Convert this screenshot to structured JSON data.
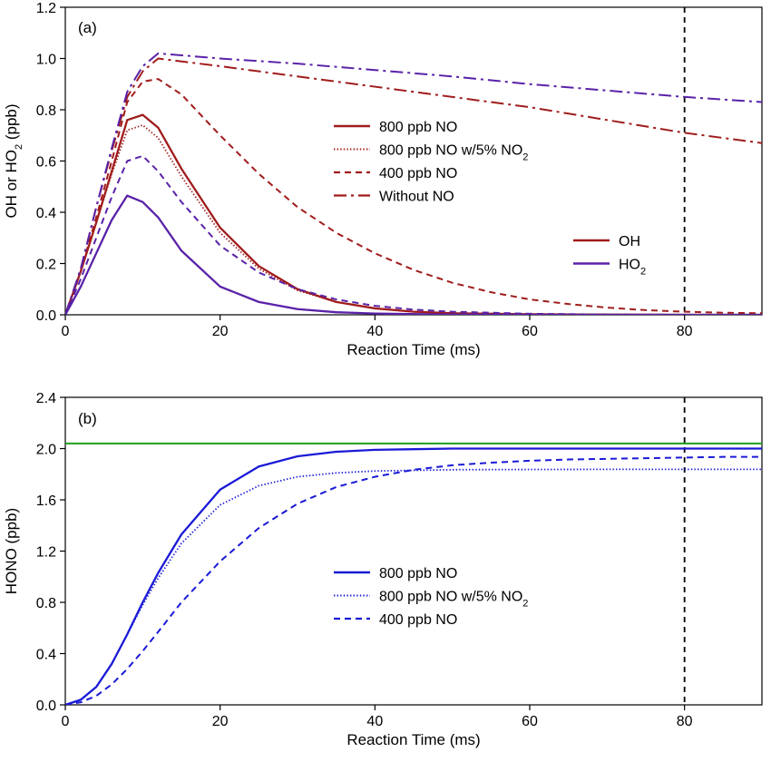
{
  "chart_data": [
    {
      "type": "line",
      "panel_label": "(a)",
      "xlabel": "Reaction Time (ms)",
      "ylabel": "OH or HO",
      "ylabel_sub": "2",
      "ylabel_tail": " (ppb)",
      "xlim": [
        0,
        90
      ],
      "ylim": [
        0,
        1.2
      ],
      "xticks": [
        0,
        20,
        40,
        60,
        80
      ],
      "yticks": [
        0.0,
        0.2,
        0.4,
        0.6,
        0.8,
        1.0,
        1.2
      ],
      "xtick_labels": [
        "0",
        "20",
        "40",
        "60",
        "80"
      ],
      "ytick_labels": [
        "0.0",
        "0.2",
        "0.4",
        "0.6",
        "0.8",
        "1.0",
        "1.2"
      ],
      "vline": 80,
      "colors": {
        "OH": "#a01c1c",
        "HO2": "#5a22a8"
      },
      "legend_styles": [
        {
          "label": "800 ppb NO",
          "dash": "solid"
        },
        {
          "label": "800 ppb NO w/5% NO",
          "sub": "2",
          "dash": "dotted"
        },
        {
          "label": "400 ppb NO",
          "dash": "dashed"
        },
        {
          "label": "Without NO",
          "dash": "dashdot"
        }
      ],
      "legend_species": [
        {
          "label": "OH",
          "color": "#a01c1c"
        },
        {
          "label": "HO",
          "sub": "2",
          "color": "#5a22a8"
        }
      ],
      "series": [
        {
          "species": "OH",
          "style": "solid",
          "x": [
            0,
            2,
            4,
            6,
            8,
            10,
            12,
            15,
            20,
            25,
            30,
            35,
            40,
            45,
            50,
            60,
            70,
            80,
            90
          ],
          "y": [
            0,
            0.17,
            0.36,
            0.56,
            0.76,
            0.78,
            0.73,
            0.57,
            0.34,
            0.19,
            0.1,
            0.05,
            0.025,
            0.012,
            0.006,
            0.002,
            0.001,
            0,
            0
          ]
        },
        {
          "species": "OH",
          "style": "dotted",
          "x": [
            0,
            2,
            4,
            6,
            8,
            10,
            12,
            15,
            20,
            25,
            30,
            35,
            40,
            45,
            50,
            60,
            70,
            80,
            90
          ],
          "y": [
            0,
            0.17,
            0.36,
            0.55,
            0.72,
            0.74,
            0.69,
            0.54,
            0.32,
            0.18,
            0.095,
            0.05,
            0.025,
            0.012,
            0.006,
            0.002,
            0.001,
            0,
            0
          ]
        },
        {
          "species": "OH",
          "style": "dashed",
          "x": [
            0,
            2,
            4,
            6,
            8,
            10,
            12,
            15,
            20,
            25,
            30,
            35,
            40,
            45,
            50,
            55,
            60,
            65,
            70,
            75,
            80,
            85,
            90
          ],
          "y": [
            0,
            0.17,
            0.38,
            0.6,
            0.83,
            0.91,
            0.92,
            0.86,
            0.7,
            0.55,
            0.42,
            0.32,
            0.24,
            0.175,
            0.125,
            0.088,
            0.06,
            0.042,
            0.028,
            0.018,
            0.012,
            0.008,
            0.006
          ]
        },
        {
          "species": "OH",
          "style": "dashdot",
          "x": [
            0,
            2,
            4,
            6,
            8,
            10,
            12,
            20,
            30,
            40,
            50,
            60,
            70,
            80,
            90
          ],
          "y": [
            0,
            0.18,
            0.42,
            0.64,
            0.85,
            0.95,
            1.0,
            0.97,
            0.93,
            0.89,
            0.85,
            0.81,
            0.76,
            0.71,
            0.67
          ]
        },
        {
          "species": "HO2",
          "style": "solid",
          "x": [
            0,
            2,
            4,
            6,
            8,
            10,
            12,
            15,
            20,
            25,
            30,
            35,
            40,
            50,
            60,
            70,
            80,
            90
          ],
          "y": [
            0,
            0.11,
            0.24,
            0.37,
            0.465,
            0.44,
            0.38,
            0.25,
            0.11,
            0.05,
            0.022,
            0.01,
            0.005,
            0.001,
            0,
            0,
            0,
            0
          ]
        },
        {
          "species": "HO2",
          "style": "dotted",
          "x": [
            0,
            2,
            4,
            6,
            8,
            10,
            12,
            15,
            20,
            25,
            30,
            35,
            40,
            50,
            60,
            70,
            80,
            90
          ],
          "y": [
            0,
            0.11,
            0.24,
            0.37,
            0.465,
            0.44,
            0.38,
            0.25,
            0.11,
            0.05,
            0.022,
            0.01,
            0.005,
            0.001,
            0,
            0,
            0,
            0
          ]
        },
        {
          "species": "HO2",
          "style": "dashed",
          "x": [
            0,
            2,
            4,
            6,
            8,
            10,
            12,
            15,
            20,
            25,
            30,
            35,
            40,
            45,
            50,
            60,
            70,
            80,
            90
          ],
          "y": [
            0,
            0.14,
            0.3,
            0.46,
            0.6,
            0.62,
            0.56,
            0.44,
            0.27,
            0.165,
            0.1,
            0.06,
            0.035,
            0.02,
            0.012,
            0.004,
            0.001,
            0,
            0
          ]
        },
        {
          "species": "HO2",
          "style": "dashdot",
          "x": [
            0,
            2,
            4,
            6,
            8,
            10,
            12,
            20,
            30,
            40,
            50,
            60,
            70,
            80,
            90
          ],
          "y": [
            0,
            0.18,
            0.42,
            0.65,
            0.87,
            0.97,
            1.02,
            1.0,
            0.98,
            0.955,
            0.93,
            0.9,
            0.875,
            0.85,
            0.83
          ]
        }
      ]
    },
    {
      "type": "line",
      "panel_label": "(b)",
      "xlabel": "Reaction Time (ms)",
      "ylabel": "HONO (ppb)",
      "xlim": [
        0,
        90
      ],
      "ylim": [
        0,
        2.4
      ],
      "xticks": [
        0,
        20,
        40,
        60,
        80
      ],
      "yticks": [
        0.0,
        0.4,
        0.8,
        1.2,
        1.6,
        2.0,
        2.4
      ],
      "xtick_labels": [
        "0",
        "20",
        "40",
        "60",
        "80"
      ],
      "ytick_labels": [
        "0.0",
        "0.4",
        "0.8",
        "1.2",
        "1.6",
        "2.0",
        "2.4"
      ],
      "vline": 80,
      "hline": {
        "y": 2.04,
        "color": "#1e9e1e"
      },
      "colors": {
        "HONO": "#1a1ad6"
      },
      "legend_styles": [
        {
          "label": "800 ppb NO",
          "dash": "solid"
        },
        {
          "label": "800 ppb NO w/5% NO",
          "sub": "2",
          "dash": "dotted"
        },
        {
          "label": "400 ppb NO",
          "dash": "dashed"
        }
      ],
      "series": [
        {
          "species": "HONO",
          "style": "solid",
          "x": [
            0,
            2,
            4,
            6,
            8,
            10,
            12,
            15,
            20,
            25,
            30,
            35,
            40,
            45,
            50,
            60,
            70,
            80,
            90
          ],
          "y": [
            0,
            0.04,
            0.14,
            0.32,
            0.55,
            0.8,
            1.03,
            1.33,
            1.68,
            1.86,
            1.94,
            1.975,
            1.99,
            1.995,
            2.0,
            2.0,
            2.0,
            2.0,
            2.0
          ]
        },
        {
          "species": "HONO",
          "style": "dotted",
          "x": [
            0,
            2,
            4,
            6,
            8,
            10,
            12,
            15,
            20,
            25,
            30,
            35,
            40,
            45,
            50,
            60,
            70,
            80,
            90
          ],
          "y": [
            0,
            0.04,
            0.14,
            0.32,
            0.55,
            0.78,
            0.99,
            1.26,
            1.56,
            1.71,
            1.78,
            1.81,
            1.825,
            1.83,
            1.835,
            1.837,
            1.838,
            1.838,
            1.838
          ]
        },
        {
          "species": "HONO",
          "style": "dashed",
          "x": [
            0,
            2,
            4,
            6,
            8,
            10,
            12,
            15,
            20,
            25,
            30,
            35,
            40,
            45,
            50,
            55,
            60,
            65,
            70,
            75,
            80,
            85,
            90
          ],
          "y": [
            0,
            0.02,
            0.07,
            0.16,
            0.28,
            0.42,
            0.57,
            0.8,
            1.12,
            1.38,
            1.57,
            1.7,
            1.78,
            1.835,
            1.87,
            1.89,
            1.905,
            1.915,
            1.92,
            1.925,
            1.93,
            1.935,
            1.935
          ]
        }
      ]
    }
  ]
}
